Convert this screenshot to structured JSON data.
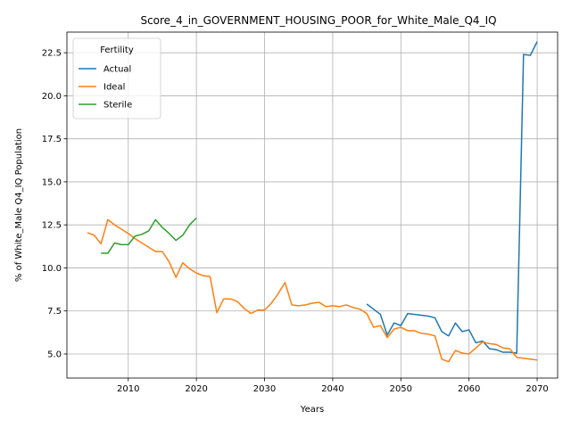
{
  "chart_data": {
    "type": "line",
    "title": "Score_4_in_GOVERNMENT_HOUSING_POOR_for_White_Male_Q4_IQ",
    "xlabel": "Years",
    "ylabel": "% of White_Male Q4_IQ Population",
    "xlim": [
      2001,
      2073
    ],
    "ylim": [
      3.6,
      23.7
    ],
    "xticks": [
      2010,
      2020,
      2030,
      2040,
      2050,
      2060,
      2070
    ],
    "yticks": [
      5.0,
      7.5,
      10.0,
      12.5,
      15.0,
      17.5,
      20.0,
      22.5
    ],
    "ytick_labels": [
      "5.0",
      "7.5",
      "10.0",
      "12.5",
      "15.0",
      "17.5",
      "20.0",
      "22.5"
    ],
    "grid": true,
    "legend": {
      "title": "Fertility",
      "placement": "top-left"
    },
    "series": [
      {
        "name": "Actual",
        "color": "#1f77b4",
        "x": [
          2045,
          2046,
          2047,
          2048,
          2049,
          2050,
          2051,
          2052,
          2053,
          2054,
          2055,
          2056,
          2057,
          2058,
          2059,
          2060,
          2061,
          2062,
          2063,
          2064,
          2065,
          2066,
          2067,
          2068,
          2069,
          2070
        ],
        "y": [
          7.9,
          7.6,
          7.3,
          6.1,
          6.8,
          6.65,
          7.35,
          7.3,
          7.25,
          7.2,
          7.1,
          6.3,
          6.05,
          6.8,
          6.3,
          6.4,
          5.65,
          5.75,
          5.3,
          5.25,
          5.1,
          5.1,
          5.05,
          22.4,
          22.35,
          23.15
        ]
      },
      {
        "name": "Ideal",
        "color": "#ff7f0e",
        "x": [
          2004,
          2005,
          2006,
          2007,
          2008,
          2009,
          2010,
          2011,
          2012,
          2013,
          2014,
          2015,
          2016,
          2017,
          2018,
          2019,
          2020,
          2021,
          2022,
          2023,
          2024,
          2025,
          2026,
          2027,
          2028,
          2029,
          2030,
          2031,
          2032,
          2033,
          2034,
          2035,
          2036,
          2037,
          2038,
          2039,
          2040,
          2041,
          2042,
          2043,
          2044,
          2045,
          2046,
          2047,
          2048,
          2049,
          2050,
          2051,
          2052,
          2053,
          2054,
          2055,
          2056,
          2057,
          2058,
          2059,
          2060,
          2061,
          2062,
          2063,
          2064,
          2065,
          2066,
          2067,
          2068,
          2069,
          2070
        ],
        "y": [
          12.05,
          11.9,
          11.4,
          12.8,
          12.5,
          12.25,
          12.0,
          11.7,
          11.45,
          11.2,
          10.95,
          10.95,
          10.35,
          9.45,
          10.3,
          9.95,
          9.7,
          9.55,
          9.5,
          7.4,
          8.2,
          8.2,
          8.05,
          7.65,
          7.35,
          7.55,
          7.55,
          7.95,
          8.5,
          9.15,
          7.85,
          7.8,
          7.85,
          7.95,
          8.0,
          7.75,
          7.8,
          7.75,
          7.85,
          7.7,
          7.6,
          7.35,
          6.55,
          6.65,
          5.95,
          6.45,
          6.55,
          6.35,
          6.35,
          6.2,
          6.15,
          6.05,
          4.7,
          4.55,
          5.2,
          5.05,
          5.0,
          5.35,
          5.7,
          5.6,
          5.55,
          5.35,
          5.3,
          4.8,
          4.75,
          4.7,
          4.65
        ]
      },
      {
        "name": "Sterile",
        "color": "#2ca02c",
        "x": [
          2006,
          2007,
          2008,
          2009,
          2010,
          2011,
          2012,
          2013,
          2014,
          2015,
          2016,
          2017,
          2018,
          2019,
          2020
        ],
        "y": [
          10.85,
          10.85,
          11.45,
          11.35,
          11.35,
          11.85,
          11.95,
          12.15,
          12.8,
          12.35,
          12.0,
          11.6,
          11.9,
          12.5,
          12.9
        ]
      }
    ]
  }
}
